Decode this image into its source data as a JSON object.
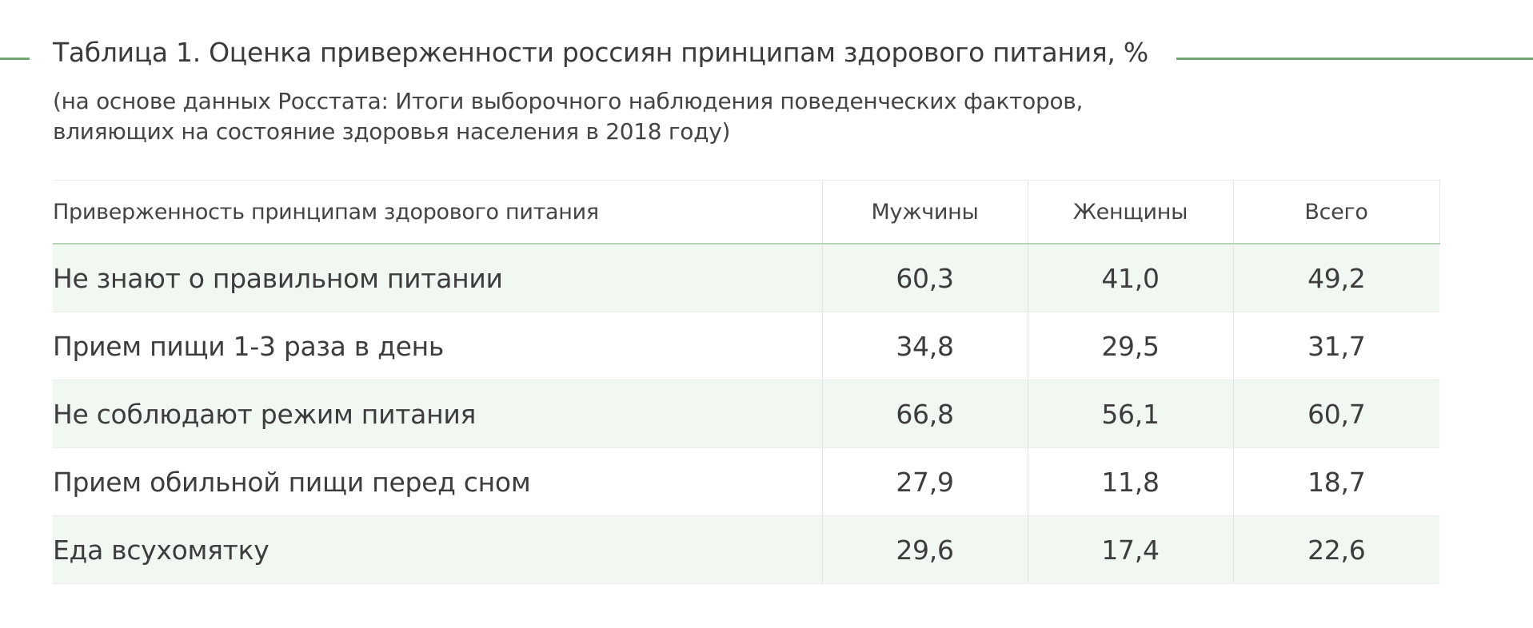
{
  "title": "Таблица 1. Оценка приверженности россиян принципам здорового питания, %",
  "subtitle": "(на основе данных Росстата: Итоги выборочного наблюдения поведенческих факторов, влияющих на состояние здоровья населения в 2018 году)",
  "accent_color": "#6fa56f",
  "table": {
    "headers": [
      "Приверженность принципам здорового питания",
      "Мужчины",
      "Женщины",
      "Всего"
    ],
    "rows": [
      {
        "label": "Не знают о правильном питании",
        "men": "60,3",
        "women": "41,0",
        "total": "49,2"
      },
      {
        "label": "Прием пищи 1-3 раза в день",
        "men": "34,8",
        "women": "29,5",
        "total": "31,7"
      },
      {
        "label": "Не соблюдают режим питания",
        "men": "66,8",
        "women": "56,1",
        "total": "60,7"
      },
      {
        "label": "Прием обильной пищи перед сном",
        "men": "27,9",
        "women": "11,8",
        "total": "18,7"
      },
      {
        "label": "Еда всухомятку",
        "men": "29,6",
        "women": "17,4",
        "total": "22,6"
      }
    ]
  }
}
